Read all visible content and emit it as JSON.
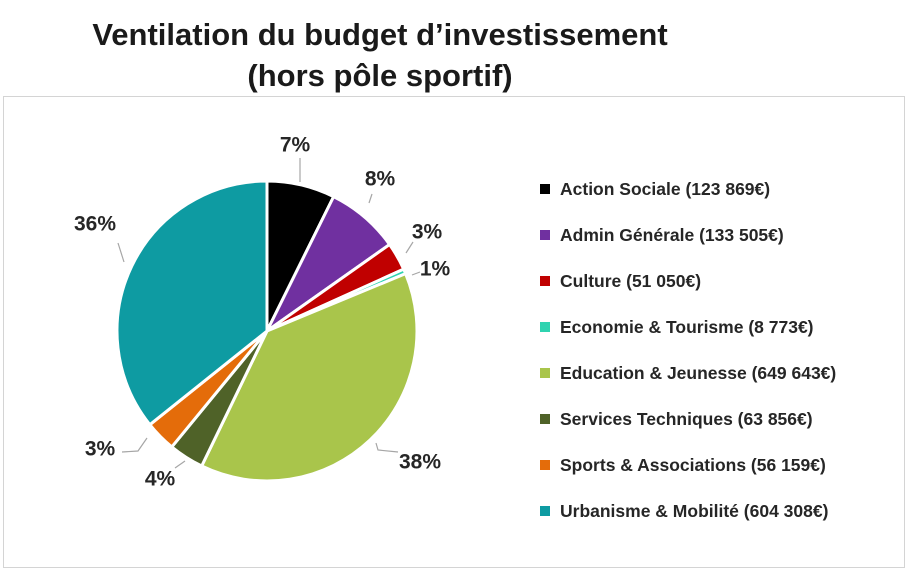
{
  "chart_data": {
    "type": "pie",
    "title_lines": [
      "Ventilation du budget d’investissement",
      "(hors pôle sportif)"
    ],
    "slices": [
      {
        "label": "Action Sociale",
        "amount": "123 869€",
        "legend": "Action Sociale (123 869€)",
        "value": 123869,
        "pct_label": "7%",
        "color": "#000000"
      },
      {
        "label": "Admin Générale",
        "amount": "133 505€",
        "legend": "Admin Générale (133 505€)",
        "value": 133505,
        "pct_label": "8%",
        "color": "#7030a0"
      },
      {
        "label": "Culture",
        "amount": "51 050€",
        "legend": "Culture (51 050€)",
        "value": 51050,
        "pct_label": "3%",
        "color": "#c00000"
      },
      {
        "label": "Economie & Tourisme",
        "amount": "8 773€",
        "legend": "Economie & Tourisme (8 773€)",
        "value": 8773,
        "pct_label": "1%",
        "color": "#2fd3b0"
      },
      {
        "label": "Education & Jeunesse",
        "amount": "649 643€",
        "legend": "Education & Jeunesse (649 643€)",
        "value": 649643,
        "pct_label": "38%",
        "color": "#a9c54b"
      },
      {
        "label": "Services Techniques",
        "amount": "63 856€",
        "legend": "Services Techniques (63 856€)",
        "value": 63856,
        "pct_label": "4%",
        "color": "#4f6228"
      },
      {
        "label": "Sports & Associations",
        "amount": "56 159€",
        "legend": "Sports & Associations (56 159€)",
        "value": 56159,
        "pct_label": "3%",
        "color": "#e46c0a"
      },
      {
        "label": "Urbanisme & Mobilité",
        "amount": "604 308€",
        "legend": "Urbanisme & Mobilité (604 308€)",
        "value": 604308,
        "pct_label": "36%",
        "color": "#0e9ba2"
      }
    ],
    "legend_position": "right",
    "start_angle": "top, clockwise"
  }
}
